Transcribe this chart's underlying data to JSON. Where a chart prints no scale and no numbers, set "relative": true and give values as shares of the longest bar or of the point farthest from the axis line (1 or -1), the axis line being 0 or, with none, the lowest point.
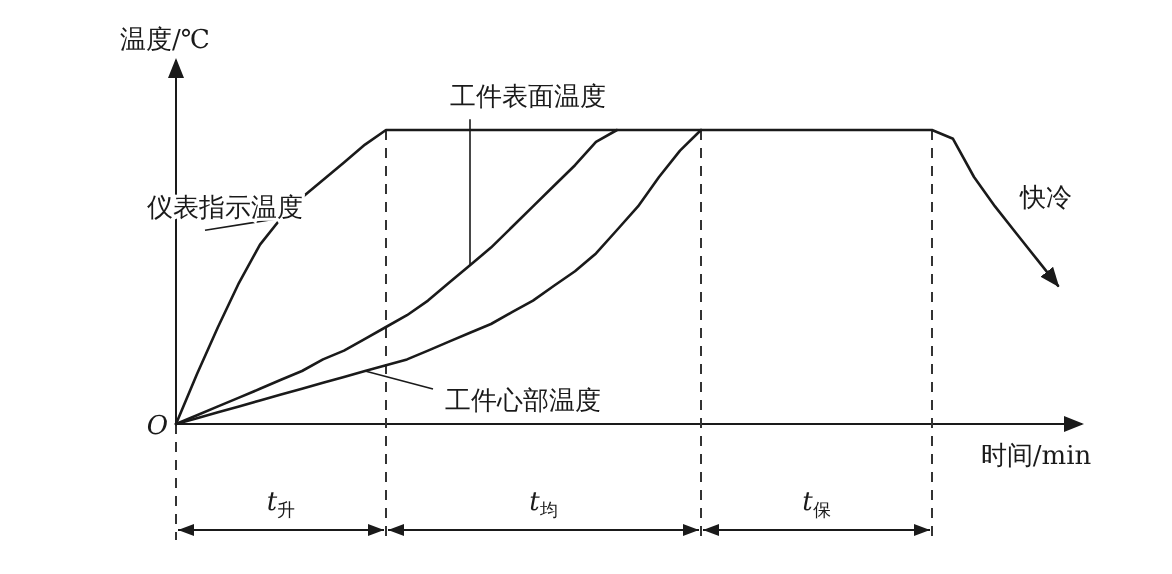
{
  "chart_data": {
    "type": "line",
    "relative": true,
    "ylabel": "温度/℃",
    "xlabel": "时间/min",
    "marker": "none",
    "grid": "x",
    "line_style": "solid",
    "categories": [
      null,
      null,
      null,
      null,
      null,
      null,
      null,
      null,
      null,
      null,
      null,
      null,
      null,
      null,
      null,
      null,
      null,
      null,
      null,
      null,
      null,
      null,
      null,
      null,
      null,
      null,
      null,
      null,
      null,
      null,
      null,
      null,
      null,
      null,
      null,
      null,
      null,
      null,
      null,
      null,
      null,
      null,
      null
    ],
    "series": [
      {
        "name": "仪表指示温度",
        "color": "#1a1a1a",
        "values": [
          0,
          0.17,
          0.33,
          0.48,
          0.61,
          0.7,
          0.77,
          0.83,
          0.89,
          0.95,
          1,
          1,
          1,
          1,
          1,
          1,
          1,
          1,
          1,
          1,
          1,
          1,
          1,
          1,
          1,
          1,
          1,
          1,
          1,
          1,
          1,
          1,
          1,
          1,
          1,
          1,
          1,
          0.97,
          0.84,
          0.74,
          0.65,
          0.56,
          0.47
        ]
      },
      {
        "name": "工件表面温度",
        "color": "#1a1a1a",
        "values": [
          0,
          0.03,
          0.06,
          0.09,
          0.12,
          0.15,
          0.18,
          0.22,
          0.25,
          0.29,
          0.33,
          0.37,
          0.42,
          0.48,
          0.54,
          0.6,
          0.67,
          0.74,
          0.81,
          0.88,
          0.96,
          1,
          null,
          null,
          null,
          null,
          null,
          null,
          null,
          null,
          null,
          null,
          null,
          null,
          null,
          null,
          null,
          null,
          null,
          null,
          null,
          null,
          null
        ]
      },
      {
        "name": "工件心部温度",
        "color": "#1a1a1a",
        "values": [
          0,
          0.02,
          0.04,
          0.06,
          0.08,
          0.1,
          0.12,
          0.14,
          0.16,
          0.18,
          0.2,
          0.22,
          0.25,
          0.28,
          0.31,
          0.34,
          0.38,
          0.42,
          0.47,
          0.52,
          0.58,
          0.66,
          0.74,
          0.84,
          0.93,
          1,
          null,
          null,
          null,
          null,
          null,
          null,
          null,
          null,
          null,
          null,
          null,
          null,
          null,
          null,
          null,
          null,
          null
        ]
      }
    ],
    "annotations": [
      "O",
      "快冷",
      "*t*$_{升}$",
      "*t*$_{均}$",
      "*t*$_{保}$"
    ]
  }
}
